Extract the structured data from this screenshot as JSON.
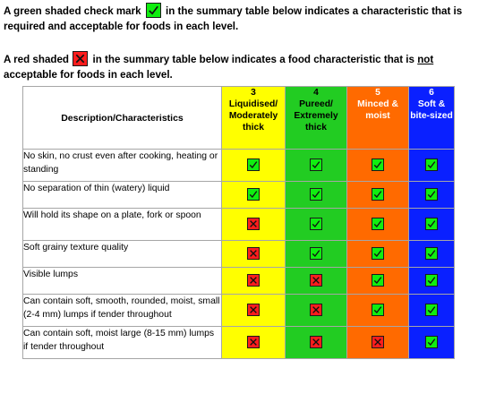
{
  "legend": {
    "green": {
      "before": "A green shaded check mark",
      "after": " in the summary table below indicates a characteristic that is required and acceptable for foods in each level."
    },
    "red": {
      "before": "A red shaded",
      "after_pre": " in the summary table below indicates a food characteristic that is ",
      "emphasis": "not",
      "after_post": " acceptable for foods in each level."
    }
  },
  "table": {
    "description_header": "Description/Characteristics",
    "levels": [
      {
        "number": "3",
        "name": "Liquidised/ Moderately thick",
        "color": "#ffff00"
      },
      {
        "number": "4",
        "name": "Pureed/ Extremely thick",
        "color": "#22cc22"
      },
      {
        "number": "5",
        "name": "Minced & moist",
        "color": "#ff6a00"
      },
      {
        "number": "6",
        "name": "Soft & bite-sized",
        "color": "#0a20ff"
      }
    ],
    "rows": [
      {
        "description": "No skin, no crust even after cooking, heating or standing",
        "marks": [
          "check",
          "check",
          "check",
          "check"
        ]
      },
      {
        "description": "No separation of thin (watery) liquid",
        "marks": [
          "check",
          "check",
          "check",
          "check"
        ]
      },
      {
        "description": "Will hold its shape on a plate, fork or spoon",
        "marks": [
          "cross",
          "check",
          "check",
          "check"
        ]
      },
      {
        "description": "Soft grainy texture quality",
        "marks": [
          "cross",
          "check",
          "check",
          "check"
        ]
      },
      {
        "description": "Visible lumps",
        "marks": [
          "cross",
          "cross",
          "check",
          "check"
        ]
      },
      {
        "description": "Can contain soft, smooth, rounded, moist, small (2-4 mm) lumps if tender throughout",
        "marks": [
          "cross",
          "cross",
          "check",
          "check"
        ]
      },
      {
        "description": "Can contain soft, moist large (8-15 mm) lumps if tender throughout",
        "marks": [
          "cross",
          "cross",
          "cross",
          "check"
        ]
      }
    ]
  },
  "colors": {
    "check": "#10ee10",
    "cross": "#ff1d1d"
  }
}
